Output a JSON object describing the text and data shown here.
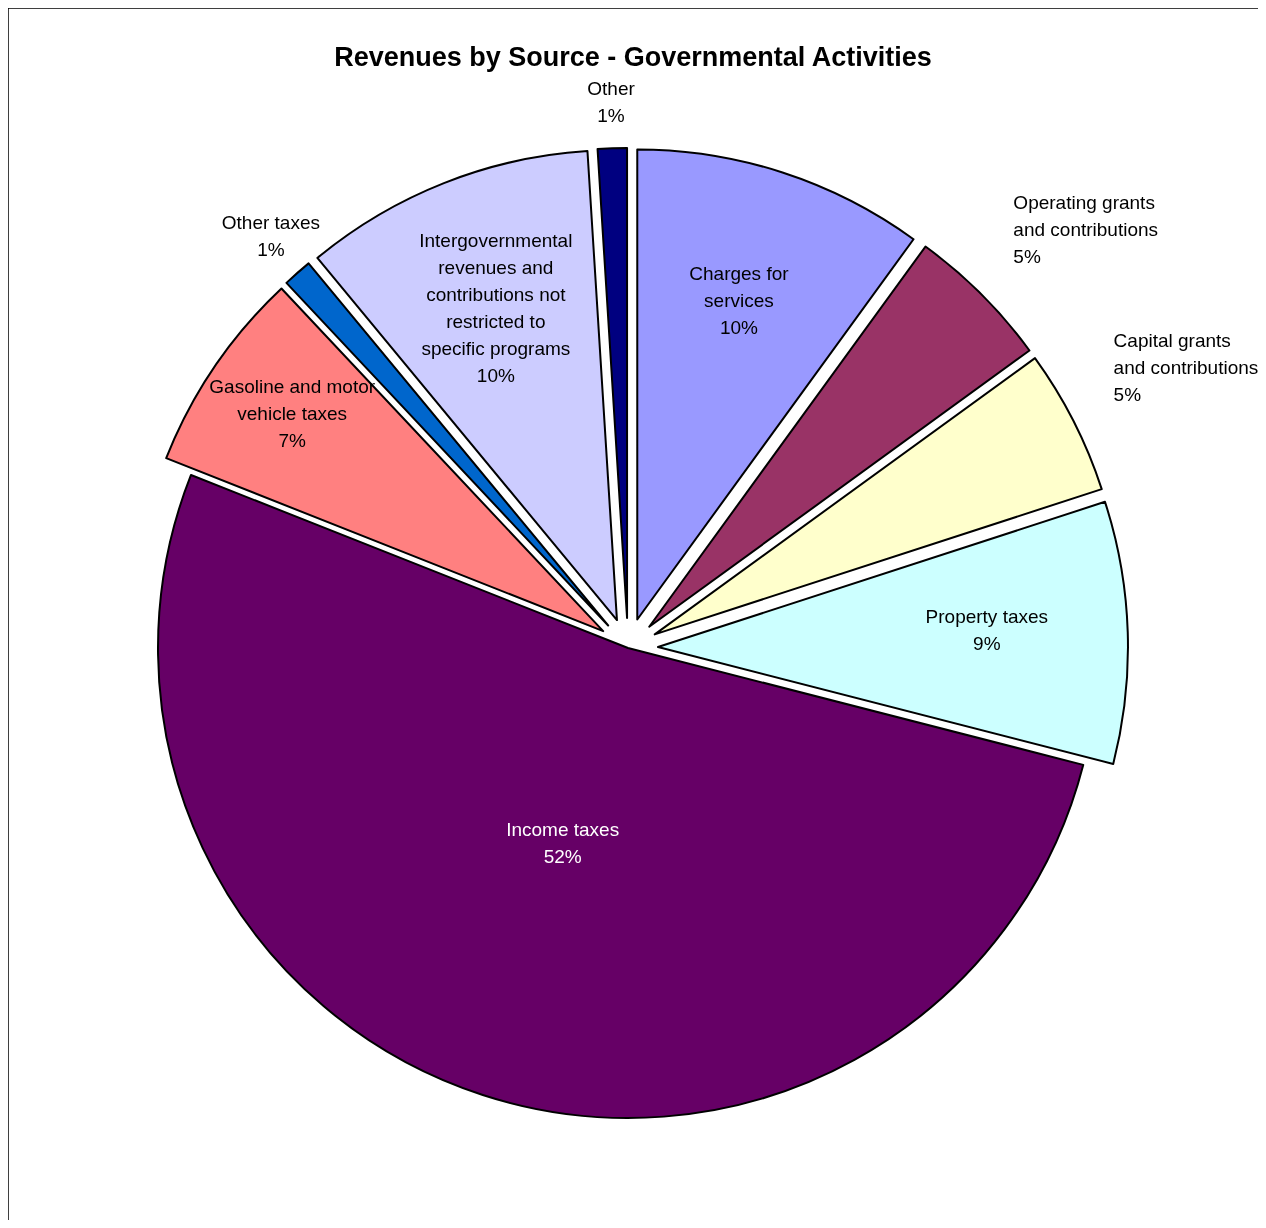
{
  "chart_data": {
    "type": "pie",
    "title": "Revenues by Source - Governmental Activities",
    "categories": [
      "Charges for services",
      "Operating grants and contributions",
      "Capital grants and contributions",
      "Property taxes",
      "Income taxes",
      "Gasoline and motor vehicle taxes",
      "Other taxes",
      "Intergovernmental revenues and contributions not restricted to specific programs",
      "Other"
    ],
    "values": [
      10,
      5,
      5,
      9,
      52,
      7,
      1,
      10,
      1
    ],
    "value_labels": [
      "10%",
      "5%",
      "5%",
      "9%",
      "52%",
      "7%",
      "1%",
      "10%",
      "1%"
    ],
    "colors": [
      "#9999ff",
      "#993366",
      "#ffffcc",
      "#ccffff",
      "#660066",
      "#ff8080",
      "#0066cc",
      "#ccccff",
      "#000080"
    ]
  }
}
